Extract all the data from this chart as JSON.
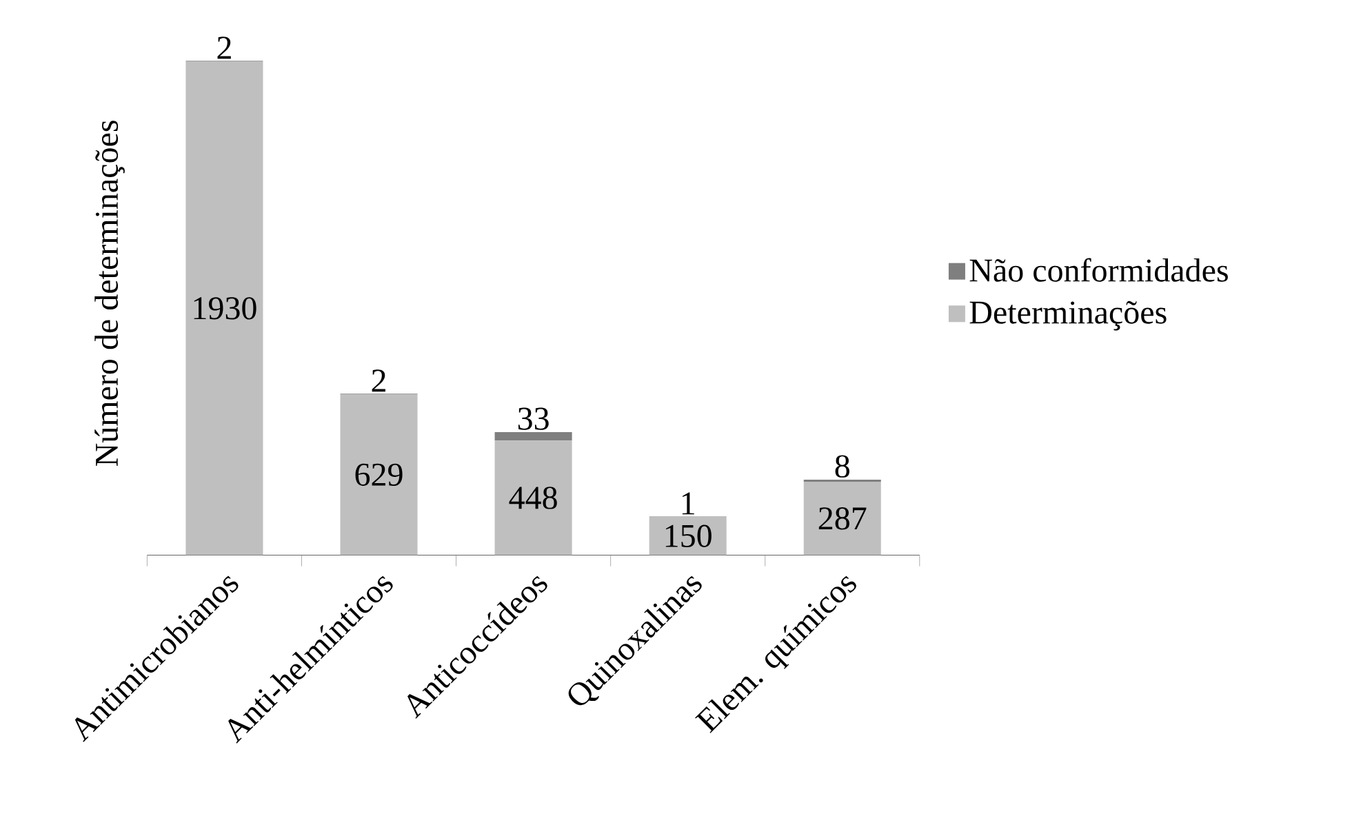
{
  "chart_data": {
    "type": "bar",
    "stacked": true,
    "ylabel": "Número de determinações",
    "categories": [
      "Antimicrobianos",
      "Anti-helmínticos",
      "Anticoccídeos",
      "Quinoxalinas",
      "Elem. químicos"
    ],
    "series": [
      {
        "name": "Determinações",
        "color": "#bfbfbf",
        "values": [
          1930,
          629,
          448,
          150,
          287
        ]
      },
      {
        "name": "Não conformidades",
        "color": "#7f7f7f",
        "values": [
          2,
          2,
          33,
          1,
          8
        ]
      }
    ],
    "tick_labels": "x",
    "data_labels": true,
    "legend": "right"
  }
}
